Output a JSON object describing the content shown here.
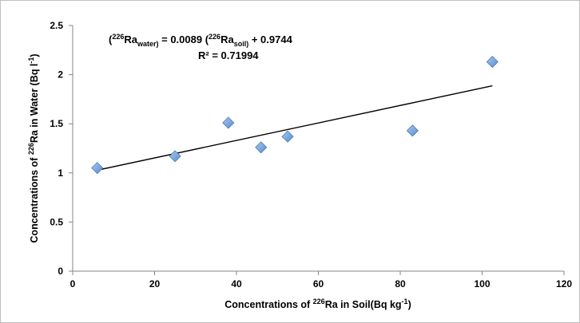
{
  "chart_data": {
    "type": "scatter",
    "x_ticks": [
      "0",
      "20",
      "40",
      "60",
      "80",
      "100",
      "120"
    ],
    "y_ticks": [
      "0",
      "0.5",
      "1",
      "1.5",
      "2",
      "2.5"
    ],
    "xlim": [
      0,
      120
    ],
    "ylim": [
      0,
      2.5
    ],
    "grid": false,
    "xlabel": {
      "pre": "Concentrations of ",
      "sup": "226",
      "post": "Ra in Soil(Bq kg",
      "sup2": "-1",
      "end": ")"
    },
    "ylabel": {
      "pre": "Concentrations of ",
      "sup": "226",
      "post": "Ra in Water (Bq l",
      "sup2": "-1",
      "end": ")"
    },
    "points": [
      {
        "x": 6,
        "y": 1.05
      },
      {
        "x": 25,
        "y": 1.17
      },
      {
        "x": 38,
        "y": 1.51
      },
      {
        "x": 46,
        "y": 1.26
      },
      {
        "x": 52.5,
        "y": 1.37
      },
      {
        "x": 83,
        "y": 1.43
      },
      {
        "x": 102.5,
        "y": 2.13
      }
    ],
    "trendline": {
      "slope": 0.0089,
      "intercept": 0.9744,
      "x_range": [
        6,
        102.5
      ]
    },
    "equation": {
      "p1": "(",
      "s1": "226",
      "p2": "Ra",
      "sub1": "water)",
      "p3": " = 0.0089 (",
      "s2": "226",
      "p4": "Ra",
      "sub2": "soil)",
      "p5": "  + 0.9744"
    },
    "r2": "R² = 0.71994",
    "marker_color": "#6b9bd8",
    "marker_edge": "#4a7ab8",
    "line_color": "#000000"
  }
}
